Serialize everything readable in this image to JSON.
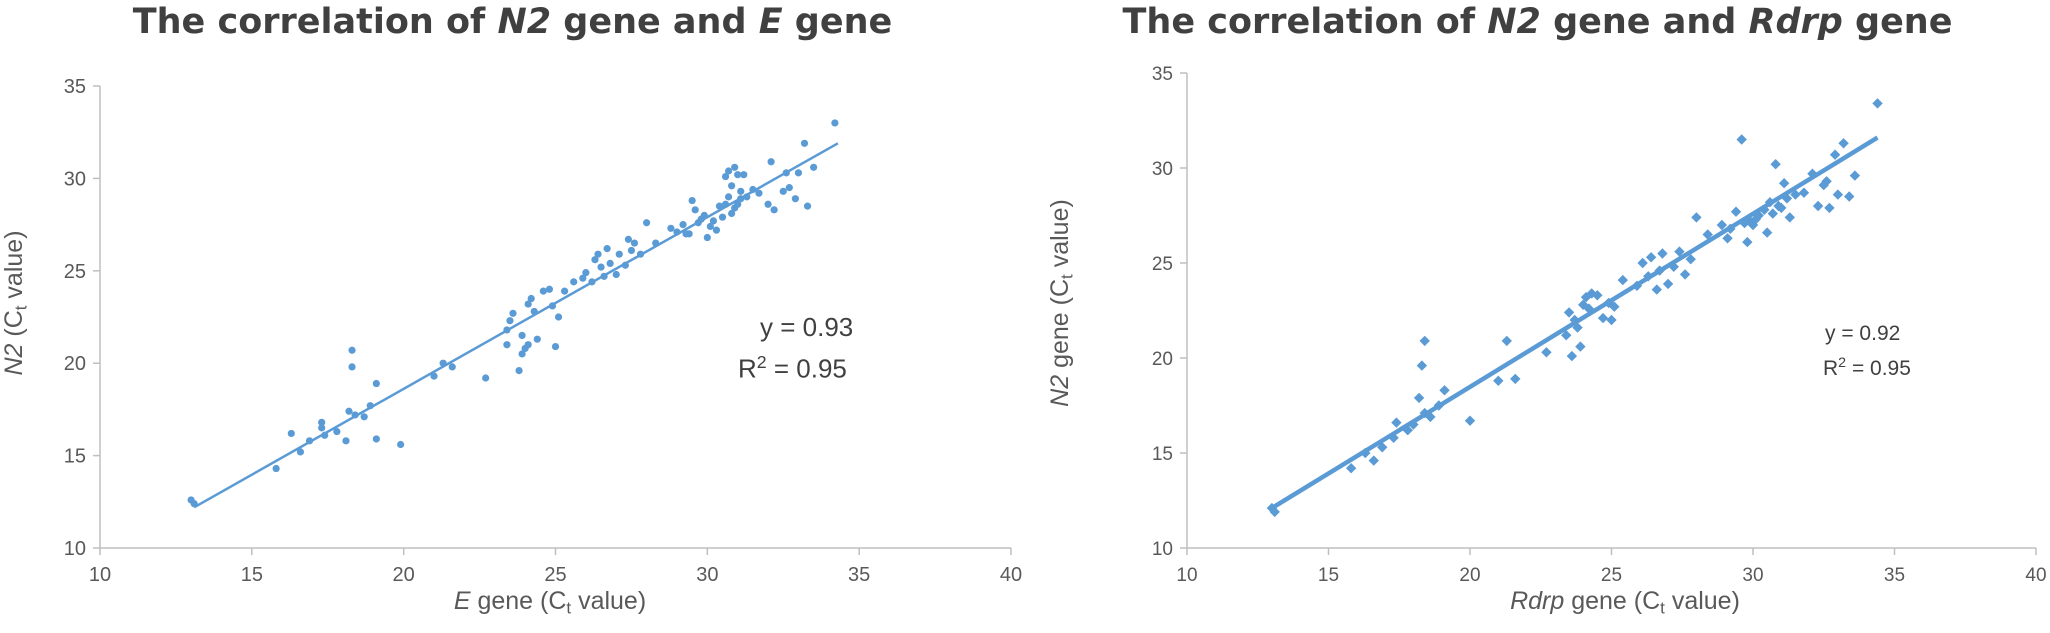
{
  "chart_data": [
    {
      "type": "scatter",
      "title_parts": [
        "The correlation of ",
        "N2",
        " gene and ",
        "E",
        " gene"
      ],
      "xlabel_parts": [
        "E",
        " gene (C",
        "t",
        " value)"
      ],
      "ylabel_parts": [
        "N2",
        " (C",
        "t",
        " value)"
      ],
      "xlim": [
        10,
        40
      ],
      "ylim": [
        10,
        35
      ],
      "xticks": [
        "10",
        "15",
        "20",
        "25",
        "30",
        "35",
        "40"
      ],
      "yticks": [
        "10",
        "15",
        "20",
        "25",
        "30",
        "35"
      ],
      "grid": false,
      "marker": "circle",
      "color": "#5b9bd5",
      "annotation": {
        "equation": "y = 0.93",
        "r2_prefix": "R",
        "r2_sup": "2",
        "r2_value": " = 0.95"
      },
      "trendline": {
        "x": [
          13.1,
          34.3
        ],
        "y": [
          12.2,
          31.9
        ]
      },
      "series": [
        {
          "x": [
            13.0,
            13.1,
            15.8,
            16.3,
            16.6,
            16.9,
            17.3,
            17.3,
            17.4,
            17.8,
            18.1,
            18.2,
            18.3,
            18.3,
            18.4,
            18.7,
            18.9,
            19.1,
            19.1,
            19.9,
            21.0,
            21.3,
            21.6,
            22.7,
            23.4,
            23.4,
            23.5,
            23.6,
            23.8,
            23.9,
            23.9,
            24.0,
            24.1,
            24.1,
            24.2,
            24.3,
            24.4,
            24.6,
            24.8,
            24.9,
            25.0,
            25.1,
            25.3,
            25.6,
            25.9,
            26.0,
            26.2,
            26.3,
            26.4,
            26.5,
            26.6,
            26.7,
            26.8,
            27.0,
            27.1,
            27.3,
            27.4,
            27.5,
            27.6,
            27.8,
            28.0,
            28.3,
            28.8,
            29.0,
            29.2,
            29.3,
            29.4,
            29.5,
            29.6,
            29.7,
            29.8,
            29.9,
            30.0,
            30.1,
            30.2,
            30.3,
            30.4,
            30.5,
            30.6,
            30.6,
            30.7,
            30.7,
            30.8,
            30.8,
            30.9,
            30.9,
            31.0,
            31.0,
            31.1,
            31.1,
            31.2,
            31.3,
            31.5,
            31.7,
            32.0,
            32.1,
            32.2,
            32.5,
            32.6,
            32.7,
            32.9,
            33.0,
            33.2,
            33.3,
            33.5,
            34.2
          ],
          "y": [
            12.6,
            12.4,
            14.3,
            16.2,
            15.2,
            15.8,
            16.5,
            16.8,
            16.1,
            16.3,
            15.8,
            17.4,
            19.8,
            20.7,
            17.2,
            17.1,
            17.7,
            18.9,
            15.9,
            15.6,
            19.3,
            20.0,
            19.8,
            19.2,
            21.0,
            21.8,
            22.3,
            22.7,
            19.6,
            20.5,
            21.5,
            20.8,
            21.0,
            23.2,
            23.5,
            22.8,
            21.3,
            23.9,
            24.0,
            23.1,
            20.9,
            22.5,
            23.9,
            24.4,
            24.6,
            24.9,
            24.4,
            25.6,
            25.9,
            25.2,
            24.7,
            26.2,
            25.4,
            24.8,
            25.9,
            25.3,
            26.7,
            26.1,
            26.5,
            25.9,
            27.6,
            26.5,
            27.3,
            27.1,
            27.5,
            27.0,
            27.0,
            28.8,
            28.3,
            27.6,
            27.8,
            28.0,
            26.8,
            27.4,
            27.7,
            27.2,
            28.5,
            27.9,
            28.6,
            30.1,
            29.0,
            30.4,
            28.1,
            29.6,
            28.4,
            30.6,
            28.6,
            30.2,
            29.3,
            28.9,
            30.2,
            29.0,
            29.4,
            29.2,
            28.6,
            30.9,
            28.3,
            29.3,
            30.3,
            29.5,
            28.9,
            30.3,
            31.9,
            28.5,
            30.6,
            33.0
          ]
        }
      ]
    },
    {
      "type": "scatter",
      "title_parts": [
        "The correlation of ",
        "N2",
        " gene and ",
        "Rdrp",
        " gene"
      ],
      "xlabel_parts": [
        "Rdrp",
        " gene (C",
        "t",
        " value)"
      ],
      "ylabel_parts": [
        "N2",
        " gene (C",
        "t",
        " value)"
      ],
      "xlim": [
        10,
        40
      ],
      "ylim": [
        10,
        35
      ],
      "xticks": [
        "10",
        "15",
        "20",
        "25",
        "30",
        "35",
        "40"
      ],
      "yticks": [
        "10",
        "15",
        "20",
        "25",
        "30",
        "35"
      ],
      "grid": false,
      "marker": "diamond",
      "color": "#5b9bd5",
      "annotation": {
        "equation": "y = 0.92",
        "r2_prefix": "R",
        "r2_sup": "2",
        "r2_value": " = 0.95"
      },
      "trendline": {
        "x": [
          13.0,
          34.4
        ],
        "y": [
          12.1,
          31.6
        ]
      },
      "series": [
        {
          "x": [
            13.0,
            13.1,
            15.8,
            16.3,
            16.6,
            16.9,
            17.3,
            17.4,
            17.8,
            18.0,
            18.2,
            18.3,
            18.4,
            18.4,
            18.6,
            18.9,
            19.1,
            20.0,
            21.0,
            21.3,
            21.6,
            22.7,
            23.4,
            23.5,
            23.6,
            23.7,
            23.8,
            23.9,
            24.0,
            24.1,
            24.2,
            24.3,
            24.5,
            24.7,
            24.9,
            25.0,
            25.1,
            25.4,
            25.9,
            26.1,
            26.3,
            26.4,
            26.6,
            26.7,
            26.8,
            27.0,
            27.2,
            27.4,
            27.6,
            27.8,
            28.0,
            28.4,
            28.9,
            29.1,
            29.2,
            29.4,
            29.6,
            29.7,
            29.8,
            29.9,
            30.0,
            30.1,
            30.2,
            30.4,
            30.5,
            30.6,
            30.7,
            30.8,
            30.9,
            31.0,
            31.1,
            31.2,
            31.3,
            31.5,
            31.8,
            32.1,
            32.3,
            32.5,
            32.6,
            32.7,
            32.9,
            33.0,
            33.2,
            33.4,
            33.6,
            34.4
          ],
          "y": [
            12.1,
            11.9,
            14.2,
            15.0,
            14.6,
            15.3,
            15.8,
            16.6,
            16.2,
            16.5,
            17.9,
            19.6,
            20.9,
            17.1,
            16.9,
            17.5,
            18.3,
            16.7,
            18.8,
            20.9,
            18.9,
            20.3,
            21.2,
            22.4,
            20.1,
            22.0,
            21.6,
            20.6,
            22.8,
            23.2,
            22.6,
            23.4,
            23.3,
            22.1,
            22.9,
            22.0,
            22.7,
            24.1,
            23.8,
            25.0,
            24.3,
            25.3,
            23.6,
            24.6,
            25.5,
            23.9,
            24.8,
            25.6,
            24.4,
            25.2,
            27.4,
            26.5,
            27.0,
            26.3,
            26.8,
            27.7,
            31.5,
            27.1,
            26.1,
            27.2,
            27.0,
            27.3,
            27.5,
            27.8,
            26.6,
            28.2,
            27.6,
            30.2,
            28.0,
            27.9,
            29.2,
            28.4,
            27.4,
            28.6,
            28.7,
            29.7,
            28.0,
            29.1,
            29.3,
            27.9,
            30.7,
            28.6,
            31.3,
            28.5,
            29.6,
            33.4
          ]
        }
      ]
    }
  ]
}
